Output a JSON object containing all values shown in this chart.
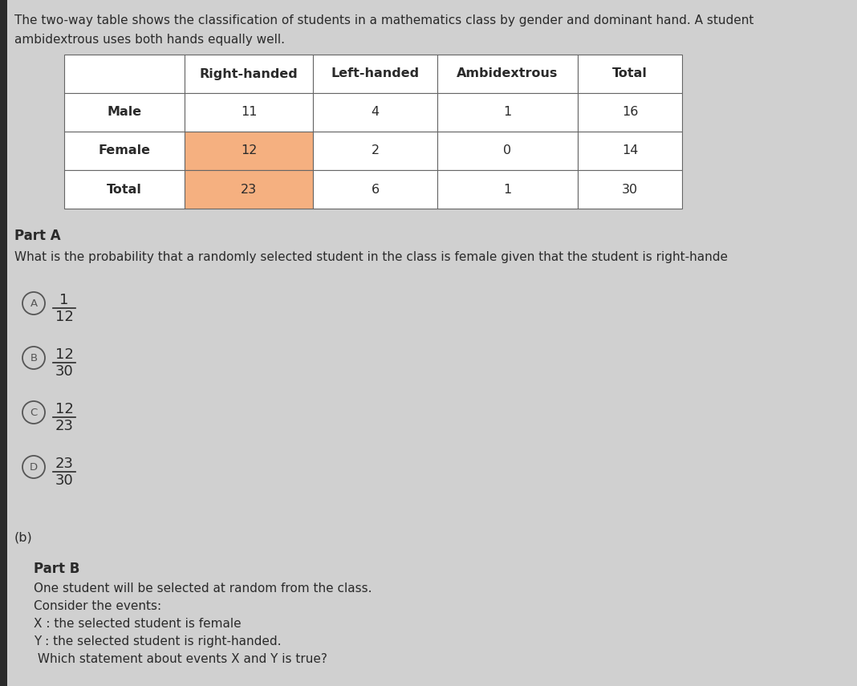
{
  "bg_color": "#d0d0d0",
  "left_bar_color": "#2a2a2a",
  "intro_line1": "The two-way table shows the classification of students in a mathematics class by gender and dominant hand. A student",
  "intro_line2": "ambidextrous uses both hands equally well.",
  "intro_fontsize": 11.0,
  "table_headers": [
    "",
    "Right-handed",
    "Left-handed",
    "Ambidextrous",
    "Total"
  ],
  "table_rows": [
    [
      "Male",
      "11",
      "4",
      "1",
      "16"
    ],
    [
      "Female",
      "12",
      "2",
      "0",
      "14"
    ],
    [
      "Total",
      "23",
      "6",
      "1",
      "30"
    ]
  ],
  "highlight_color": "#f5b080",
  "table_fontsize": 11.5,
  "part_a_label": "Part A",
  "part_a_question": "What is the probability that a randomly selected student in the class is female given that the student is right-hande",
  "part_a_options": [
    {
      "label": "A",
      "numerator": "1",
      "denominator": "12"
    },
    {
      "label": "B",
      "numerator": "12",
      "denominator": "30"
    },
    {
      "label": "C",
      "numerator": "12",
      "denominator": "23"
    },
    {
      "label": "D",
      "numerator": "23",
      "denominator": "30"
    }
  ],
  "part_b_label": "(b)",
  "part_b_heading": "Part B",
  "part_b_lines": [
    "One student will be selected at random from the class.",
    "Consider the events:",
    "X : the selected student is female",
    "Y : the selected student is right-handed.",
    " Which statement about events X and Y is true?"
  ],
  "text_color": "#2a2a2a",
  "table_text_color": "#2a2a2a",
  "option_circle_color": "#555555",
  "body_fontsize": 11.0
}
